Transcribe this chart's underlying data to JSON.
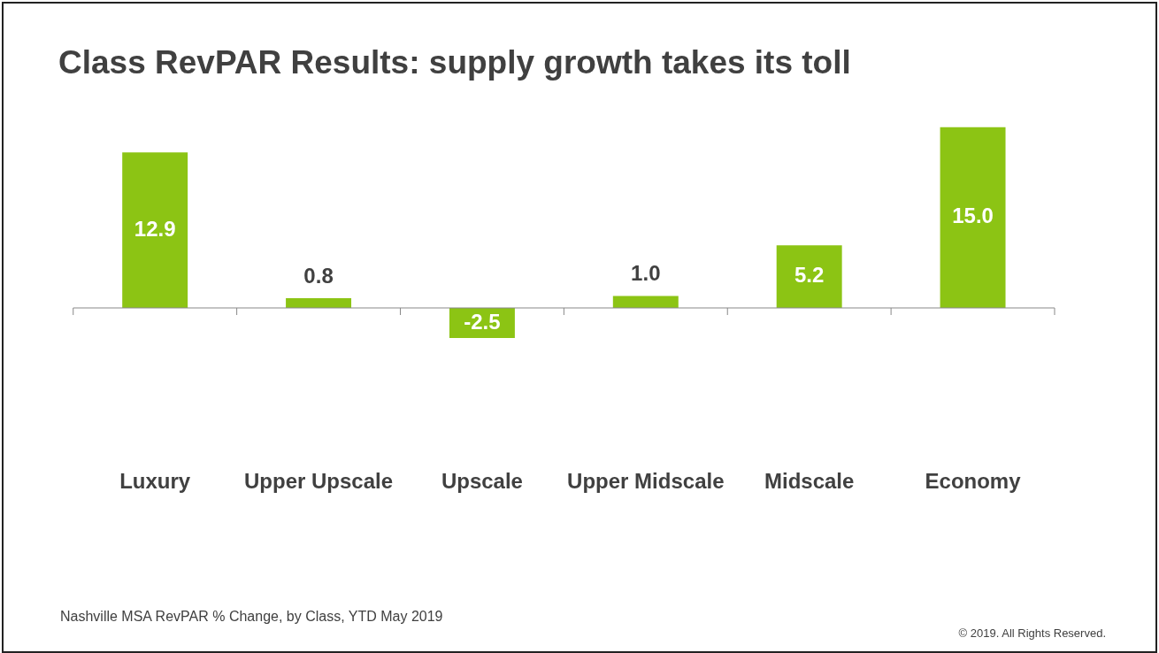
{
  "chart_data": {
    "type": "bar",
    "title": "Class RevPAR Results: supply growth takes its toll",
    "categories": [
      "Luxury",
      "Upper Upscale",
      "Upscale",
      "Upper Midscale",
      "Midscale",
      "Economy"
    ],
    "values": [
      12.9,
      0.8,
      -2.5,
      1.0,
      5.2,
      15.0
    ],
    "color": "#8cc414",
    "value_labels": [
      "12.9",
      "0.8",
      "-2.5",
      "1.0",
      "5.2",
      "15.0"
    ],
    "tick_labels": "x",
    "annotations": [
      "Nashville MSA RevPAR % Change, by Class, YTD May 2019",
      "© 2019. All Rights Reserved."
    ]
  }
}
